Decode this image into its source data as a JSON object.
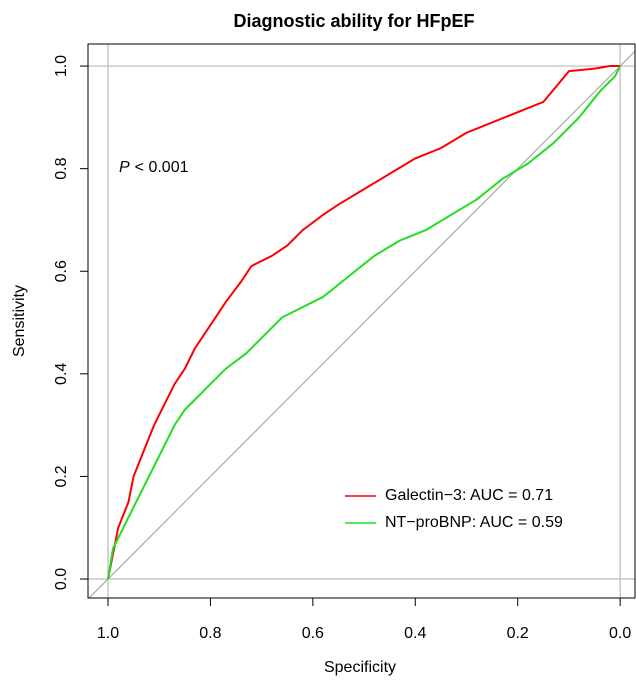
{
  "chart_data": {
    "type": "line",
    "title": "Diagnostic ability for HFpEF",
    "x_label": "Specificity",
    "y_label": "Sensitivity",
    "annotation": {
      "variable": "P",
      "text": "< 0.001"
    },
    "xlim": [
      1.039,
      -0.029
    ],
    "ylim": [
      -0.037,
      1.043
    ],
    "xticks": [
      {
        "value": 1,
        "label": "1.0"
      },
      {
        "value": 0.8,
        "label": "0.8"
      },
      {
        "value": 0.6,
        "label": "0.6"
      },
      {
        "value": 0.4,
        "label": "0.4"
      },
      {
        "value": 0.2,
        "label": "0.2"
      },
      {
        "value": 0,
        "label": "0.0"
      }
    ],
    "yticks": [
      {
        "value": 0,
        "label": "0.0"
      },
      {
        "value": 0.2,
        "label": "0.2"
      },
      {
        "value": 0.4,
        "label": "0.4"
      },
      {
        "value": 0.6,
        "label": "0.6"
      },
      {
        "value": 0.8,
        "label": "0.8"
      },
      {
        "value": 1,
        "label": "1.0"
      }
    ],
    "legend": "bottom-right",
    "series": [
      {
        "name": "Galectin−3: AUC = 0.71",
        "color": "#ff0000",
        "x": [
          1.0,
          0.99,
          0.98,
          0.96,
          0.95,
          0.93,
          0.91,
          0.89,
          0.87,
          0.85,
          0.83,
          0.81,
          0.79,
          0.77,
          0.74,
          0.72,
          0.68,
          0.65,
          0.62,
          0.58,
          0.55,
          0.5,
          0.45,
          0.4,
          0.35,
          0.3,
          0.25,
          0.2,
          0.15,
          0.1,
          0.05,
          0.02,
          0.0
        ],
        "values": [
          0,
          0.05,
          0.1,
          0.15,
          0.2,
          0.25,
          0.3,
          0.34,
          0.38,
          0.41,
          0.45,
          0.48,
          0.51,
          0.54,
          0.58,
          0.61,
          0.63,
          0.65,
          0.68,
          0.71,
          0.73,
          0.76,
          0.79,
          0.82,
          0.84,
          0.87,
          0.89,
          0.91,
          0.93,
          0.99,
          0.995,
          1.0,
          1.0
        ]
      },
      {
        "name": "NT−proBNP: AUC = 0.59",
        "color": "#22dd22",
        "x": [
          1.0,
          0.99,
          0.97,
          0.95,
          0.93,
          0.91,
          0.89,
          0.87,
          0.85,
          0.83,
          0.8,
          0.77,
          0.73,
          0.7,
          0.66,
          0.62,
          0.58,
          0.53,
          0.48,
          0.43,
          0.38,
          0.33,
          0.28,
          0.23,
          0.18,
          0.13,
          0.08,
          0.04,
          0.01,
          0.0
        ],
        "values": [
          0,
          0.06,
          0.1,
          0.14,
          0.18,
          0.22,
          0.26,
          0.3,
          0.33,
          0.35,
          0.38,
          0.41,
          0.44,
          0.47,
          0.51,
          0.53,
          0.55,
          0.59,
          0.63,
          0.66,
          0.68,
          0.71,
          0.74,
          0.78,
          0.81,
          0.85,
          0.9,
          0.95,
          0.98,
          1.0
        ]
      }
    ]
  }
}
